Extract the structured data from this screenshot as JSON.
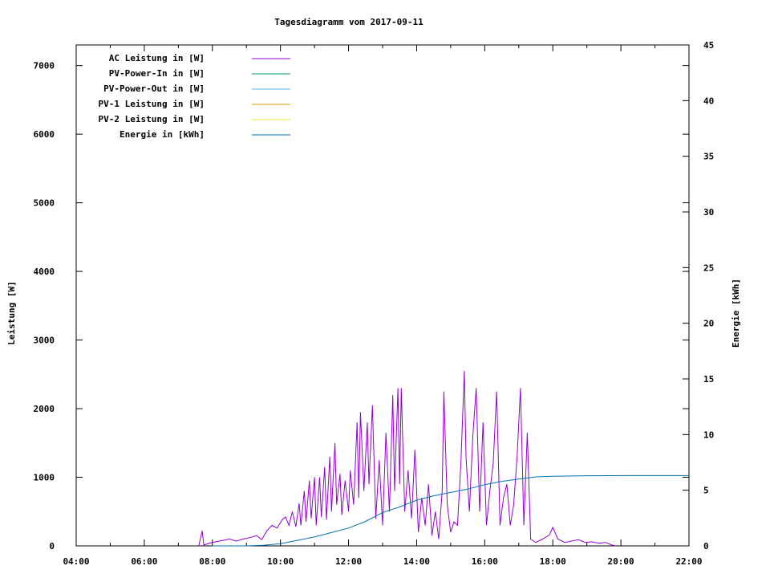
{
  "chart_data": {
    "type": "line",
    "title": "Tagesdiagramm vom 2017-09-11",
    "ylabel": "Leistung [W]",
    "y2label": "Energie [kWh]",
    "x_ticks": [
      "04:00",
      "06:00",
      "08:00",
      "10:00",
      "12:00",
      "14:00",
      "16:00",
      "18:00",
      "20:00",
      "22:00"
    ],
    "xlim_hours": [
      4,
      22
    ],
    "ylim": [
      0,
      7300
    ],
    "y_ticks": [
      0,
      1000,
      2000,
      3000,
      4000,
      5000,
      6000,
      7000
    ],
    "y2lim": [
      0,
      45
    ],
    "y2_ticks": [
      0,
      5,
      10,
      15,
      20,
      25,
      30,
      35,
      40,
      45
    ],
    "legend_position": "top-left",
    "grid": false,
    "series": [
      {
        "name": "AC Leistung in [W]",
        "color": "#9400d3",
        "axis": "y",
        "points": [
          [
            7.6,
            0
          ],
          [
            7.7,
            220
          ],
          [
            7.75,
            10
          ],
          [
            7.9,
            40
          ],
          [
            8.1,
            60
          ],
          [
            8.3,
            80
          ],
          [
            8.5,
            100
          ],
          [
            8.7,
            70
          ],
          [
            8.9,
            100
          ],
          [
            9.1,
            120
          ],
          [
            9.3,
            150
          ],
          [
            9.45,
            90
          ],
          [
            9.6,
            220
          ],
          [
            9.75,
            300
          ],
          [
            9.9,
            260
          ],
          [
            10.05,
            380
          ],
          [
            10.15,
            420
          ],
          [
            10.25,
            300
          ],
          [
            10.35,
            500
          ],
          [
            10.45,
            280
          ],
          [
            10.55,
            620
          ],
          [
            10.6,
            300
          ],
          [
            10.7,
            800
          ],
          [
            10.75,
            350
          ],
          [
            10.85,
            950
          ],
          [
            10.9,
            400
          ],
          [
            11.0,
            1000
          ],
          [
            11.05,
            300
          ],
          [
            11.15,
            1000
          ],
          [
            11.2,
            420
          ],
          [
            11.3,
            1150
          ],
          [
            11.35,
            380
          ],
          [
            11.45,
            1300
          ],
          [
            11.5,
            500
          ],
          [
            11.6,
            1500
          ],
          [
            11.65,
            600
          ],
          [
            11.75,
            1050
          ],
          [
            11.8,
            450
          ],
          [
            11.9,
            950
          ],
          [
            12.0,
            500
          ],
          [
            12.05,
            1100
          ],
          [
            12.15,
            600
          ],
          [
            12.25,
            1800
          ],
          [
            12.3,
            700
          ],
          [
            12.35,
            1950
          ],
          [
            12.45,
            800
          ],
          [
            12.55,
            1800
          ],
          [
            12.6,
            900
          ],
          [
            12.7,
            2050
          ],
          [
            12.8,
            400
          ],
          [
            12.9,
            1250
          ],
          [
            13.0,
            300
          ],
          [
            13.1,
            1650
          ],
          [
            13.2,
            500
          ],
          [
            13.3,
            2200
          ],
          [
            13.35,
            800
          ],
          [
            13.45,
            2300
          ],
          [
            13.5,
            900
          ],
          [
            13.55,
            2300
          ],
          [
            13.65,
            500
          ],
          [
            13.75,
            1100
          ],
          [
            13.85,
            400
          ],
          [
            13.95,
            1400
          ],
          [
            14.05,
            200
          ],
          [
            14.15,
            700
          ],
          [
            14.25,
            300
          ],
          [
            14.35,
            900
          ],
          [
            14.45,
            150
          ],
          [
            14.55,
            500
          ],
          [
            14.65,
            100
          ],
          [
            14.75,
            800
          ],
          [
            14.8,
            2250
          ],
          [
            14.9,
            600
          ],
          [
            15.0,
            200
          ],
          [
            15.1,
            350
          ],
          [
            15.2,
            300
          ],
          [
            15.3,
            1200
          ],
          [
            15.4,
            2550
          ],
          [
            15.45,
            1300
          ],
          [
            15.55,
            500
          ],
          [
            15.65,
            1600
          ],
          [
            15.75,
            2300
          ],
          [
            15.85,
            500
          ],
          [
            15.95,
            1800
          ],
          [
            16.05,
            300
          ],
          [
            16.15,
            800
          ],
          [
            16.25,
            1200
          ],
          [
            16.35,
            2250
          ],
          [
            16.45,
            300
          ],
          [
            16.55,
            700
          ],
          [
            16.65,
            900
          ],
          [
            16.75,
            300
          ],
          [
            16.85,
            600
          ],
          [
            16.95,
            1300
          ],
          [
            17.05,
            2300
          ],
          [
            17.15,
            300
          ],
          [
            17.25,
            1650
          ],
          [
            17.35,
            100
          ],
          [
            17.5,
            50
          ],
          [
            17.7,
            100
          ],
          [
            17.9,
            160
          ],
          [
            18.0,
            270
          ],
          [
            18.15,
            100
          ],
          [
            18.35,
            50
          ],
          [
            18.55,
            70
          ],
          [
            18.75,
            90
          ],
          [
            18.95,
            50
          ],
          [
            19.15,
            60
          ],
          [
            19.35,
            40
          ],
          [
            19.55,
            50
          ],
          [
            19.75,
            10
          ],
          [
            19.85,
            0
          ]
        ]
      },
      {
        "name": "PV-Power-In in [W]",
        "color": "#009e73",
        "axis": "y",
        "points": []
      },
      {
        "name": "PV-Power-Out in [W]",
        "color": "#56b4e9",
        "axis": "y",
        "points": []
      },
      {
        "name": "PV-1 Leistung in [W]",
        "color": "#e69f00",
        "axis": "y",
        "points": []
      },
      {
        "name": "PV-2 Leistung in [W]",
        "color": "#f0e442",
        "axis": "y",
        "points": []
      },
      {
        "name": "Energie in [kWh]",
        "color": "#0072b2",
        "axis": "y2",
        "points": [
          [
            8.0,
            0
          ],
          [
            9.0,
            0
          ],
          [
            9.5,
            0.05
          ],
          [
            10.0,
            0.2
          ],
          [
            10.5,
            0.5
          ],
          [
            11.0,
            0.8
          ],
          [
            11.5,
            1.2
          ],
          [
            12.0,
            1.6
          ],
          [
            12.5,
            2.2
          ],
          [
            13.0,
            3.0
          ],
          [
            13.5,
            3.5
          ],
          [
            14.0,
            4.1
          ],
          [
            14.5,
            4.5
          ],
          [
            15.0,
            4.8
          ],
          [
            15.5,
            5.1
          ],
          [
            16.0,
            5.5
          ],
          [
            16.5,
            5.8
          ],
          [
            17.0,
            6.0
          ],
          [
            17.5,
            6.2
          ],
          [
            18.0,
            6.25
          ],
          [
            19.0,
            6.3
          ],
          [
            20.0,
            6.32
          ],
          [
            22.0,
            6.32
          ]
        ]
      }
    ]
  }
}
